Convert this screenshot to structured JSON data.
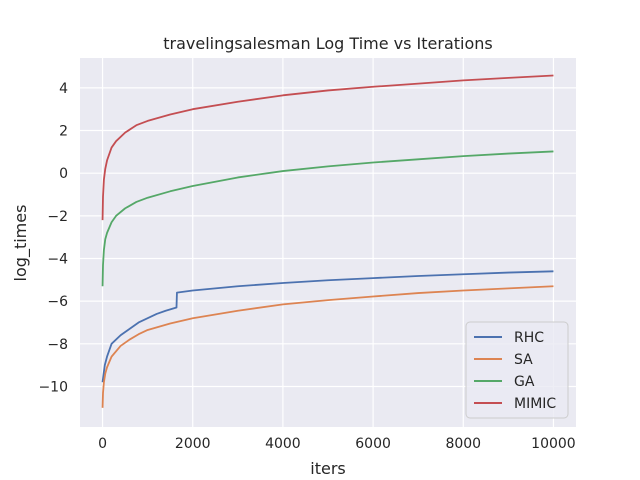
{
  "chart_data": {
    "type": "line",
    "title": "travelingsalesman Log Time vs Iterations",
    "xlabel": "iters",
    "ylabel": "log_times",
    "xlim": [
      -500,
      10500
    ],
    "ylim": [
      -11.9,
      5.4
    ],
    "xticks": [
      0,
      2000,
      4000,
      6000,
      8000,
      10000
    ],
    "yticks": [
      -10,
      -8,
      -6,
      -4,
      -2,
      0,
      2,
      4
    ],
    "ytick_labels": [
      "−10",
      "−8",
      "−6",
      "−4",
      "−2",
      "0",
      "2",
      "4"
    ],
    "grid": true,
    "legend_position": "lower-right",
    "series": [
      {
        "name": "RHC",
        "color": "#4c72b0",
        "x": [
          0,
          50,
          100,
          200,
          400,
          600,
          800,
          1000,
          1200,
          1400,
          1640,
          1650,
          2000,
          3000,
          4000,
          5000,
          6000,
          7000,
          8000,
          9000,
          10000
        ],
        "y": [
          -9.8,
          -9.0,
          -8.6,
          -8.0,
          -7.6,
          -7.3,
          -7.0,
          -6.8,
          -6.6,
          -6.45,
          -6.3,
          -5.6,
          -5.5,
          -5.3,
          -5.15,
          -5.02,
          -4.92,
          -4.82,
          -4.74,
          -4.66,
          -4.6
        ]
      },
      {
        "name": "SA",
        "color": "#dd8452",
        "x": [
          0,
          10,
          30,
          60,
          100,
          200,
          400,
          600,
          800,
          1000,
          1500,
          2000,
          3000,
          4000,
          5000,
          6000,
          7000,
          8000,
          9000,
          10000
        ],
        "y": [
          -11.0,
          -10.3,
          -9.8,
          -9.4,
          -9.1,
          -8.6,
          -8.1,
          -7.8,
          -7.55,
          -7.35,
          -7.05,
          -6.8,
          -6.45,
          -6.15,
          -5.95,
          -5.78,
          -5.62,
          -5.5,
          -5.4,
          -5.3
        ]
      },
      {
        "name": "GA",
        "color": "#55a868",
        "x": [
          0,
          10,
          30,
          60,
          100,
          200,
          300,
          500,
          750,
          1000,
          1500,
          2000,
          3000,
          4000,
          5000,
          6000,
          7000,
          8000,
          9000,
          10000
        ],
        "y": [
          -5.3,
          -4.3,
          -3.6,
          -3.1,
          -2.8,
          -2.3,
          -2.0,
          -1.65,
          -1.35,
          -1.15,
          -0.85,
          -0.6,
          -0.2,
          0.1,
          0.32,
          0.5,
          0.65,
          0.8,
          0.92,
          1.02
        ]
      },
      {
        "name": "MIMIC",
        "color": "#c44e52",
        "x": [
          0,
          10,
          30,
          60,
          100,
          200,
          300,
          500,
          750,
          1000,
          1500,
          2000,
          3000,
          4000,
          5000,
          6000,
          7000,
          8000,
          9000,
          10000
        ],
        "y": [
          -2.2,
          -1.1,
          -0.3,
          0.2,
          0.6,
          1.2,
          1.5,
          1.9,
          2.25,
          2.45,
          2.75,
          3.0,
          3.35,
          3.65,
          3.88,
          4.05,
          4.2,
          4.35,
          4.47,
          4.58
        ]
      }
    ]
  }
}
